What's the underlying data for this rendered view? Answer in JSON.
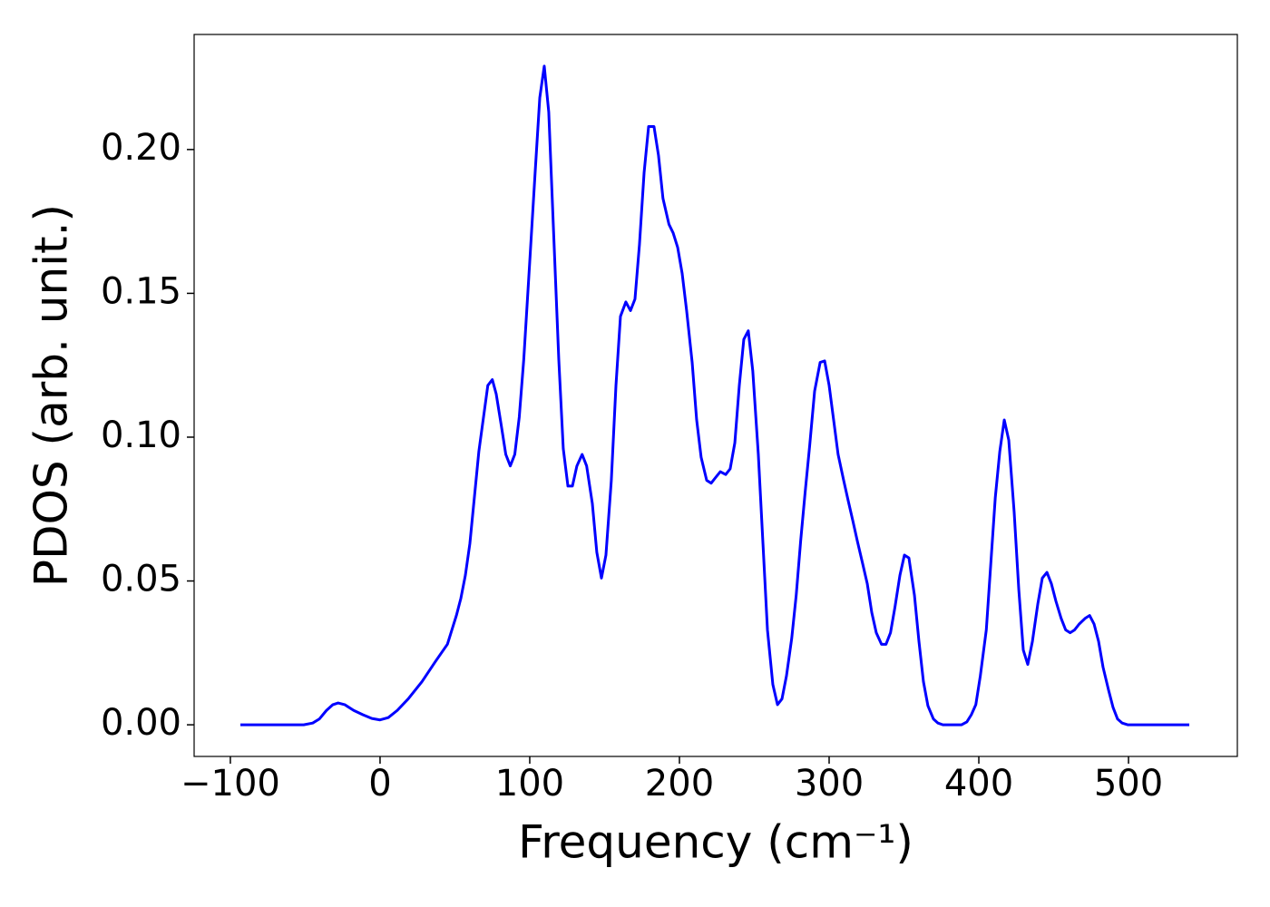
{
  "chart_data": {
    "type": "line",
    "x_label": "Frequency (cm⁻¹)",
    "y_label": "PDOS (arb. unit.)",
    "xlim": [
      -124.2,
      572.7
    ],
    "ylim": [
      -0.011,
      0.24
    ],
    "xticks": [
      {
        "value": -100,
        "label": "−100"
      },
      0,
      100,
      200,
      300,
      400,
      500
    ],
    "yticks": [
      {
        "value": 0,
        "label": "0.00"
      },
      {
        "value": 0.05,
        "label": "0.05"
      },
      {
        "value": 0.1,
        "label": "0.10"
      },
      {
        "value": 0.15,
        "label": "0.15"
      },
      {
        "value": 0.2,
        "label": "0.20"
      }
    ],
    "x": [
      -93.3,
      -51,
      -45,
      -40.6,
      -35.8,
      -31.5,
      -28,
      -23.6,
      -17.6,
      -11.5,
      -5.5,
      0,
      5.5,
      11.5,
      18.8,
      28,
      37,
      45,
      48,
      51,
      54,
      57,
      60,
      63,
      66,
      72,
      75,
      77.6,
      81,
      84,
      87,
      90,
      93,
      96,
      100,
      103.6,
      106.7,
      109.7,
      112.7,
      115.8,
      119.4,
      122.4,
      125.5,
      128.5,
      131.5,
      135,
      138,
      141.8,
      144.8,
      147.9,
      150.9,
      154.5,
      157.6,
      160.6,
      164.2,
      167.3,
      170.3,
      173.3,
      176.4,
      179.4,
      183,
      186,
      189,
      193,
      195.8,
      198.8,
      201.8,
      204.8,
      208.5,
      211.5,
      214.5,
      218.2,
      221.2,
      224.2,
      227.3,
      230.9,
      233.9,
      237,
      240,
      243,
      246,
      249,
      252.7,
      255.8,
      258.8,
      262.4,
      265.5,
      268.5,
      271.5,
      275,
      278,
      281,
      284,
      287,
      290.3,
      294,
      297,
      300,
      303,
      306,
      309.7,
      312.7,
      315.8,
      318.8,
      322.4,
      325.5,
      328.5,
      331.5,
      335,
      338,
      341,
      344,
      347.3,
      350.3,
      353.3,
      357,
      360,
      363,
      366,
      369.7,
      372.7,
      376,
      388.5,
      392,
      395,
      398,
      401,
      405,
      408,
      411,
      414,
      417,
      420,
      423.6,
      426.7,
      429.7,
      432.7,
      435.8,
      439.4,
      442.4,
      445.5,
      448.5,
      451.5,
      455,
      458,
      461,
      464,
      467,
      471,
      474,
      477,
      480,
      483,
      486.7,
      489.7,
      492.7,
      495.8,
      499.4,
      540.6
    ],
    "series": [
      {
        "color": "#0000ff",
        "values": [
          0,
          0,
          0.0006,
          0.002,
          0.005,
          0.007,
          0.0076,
          0.007,
          0.005,
          0.0035,
          0.0022,
          0.0017,
          0.0025,
          0.005,
          0.009,
          0.015,
          0.022,
          0.028,
          0.033,
          0.038,
          0.044,
          0.052,
          0.063,
          0.079,
          0.095,
          0.118,
          0.12,
          0.115,
          0.104,
          0.094,
          0.09,
          0.094,
          0.107,
          0.127,
          0.161,
          0.192,
          0.218,
          0.229,
          0.213,
          0.173,
          0.127,
          0.096,
          0.083,
          0.083,
          0.09,
          0.094,
          0.09,
          0.077,
          0.06,
          0.051,
          0.059,
          0.085,
          0.118,
          0.142,
          0.147,
          0.144,
          0.148,
          0.167,
          0.192,
          0.208,
          0.208,
          0.198,
          0.183,
          0.174,
          0.171,
          0.166,
          0.157,
          0.144,
          0.126,
          0.106,
          0.093,
          0.085,
          0.084,
          0.086,
          0.088,
          0.087,
          0.089,
          0.098,
          0.118,
          0.134,
          0.137,
          0.123,
          0.094,
          0.063,
          0.033,
          0.014,
          0.007,
          0.009,
          0.017,
          0.03,
          0.045,
          0.064,
          0.081,
          0.097,
          0.116,
          0.126,
          0.1265,
          0.118,
          0.106,
          0.094,
          0.085,
          0.078,
          0.071,
          0.064,
          0.056,
          0.049,
          0.039,
          0.032,
          0.028,
          0.028,
          0.032,
          0.041,
          0.052,
          0.059,
          0.058,
          0.045,
          0.029,
          0.015,
          0.0066,
          0.002,
          0.0006,
          0,
          0,
          0.001,
          0.0035,
          0.007,
          0.017,
          0.033,
          0.056,
          0.079,
          0.095,
          0.106,
          0.099,
          0.074,
          0.047,
          0.026,
          0.021,
          0.029,
          0.042,
          0.051,
          0.053,
          0.049,
          0.043,
          0.037,
          0.033,
          0.032,
          0.033,
          0.035,
          0.037,
          0.038,
          0.035,
          0.029,
          0.02,
          0.012,
          0.006,
          0.002,
          0.0006,
          0,
          0
        ]
      }
    ]
  }
}
